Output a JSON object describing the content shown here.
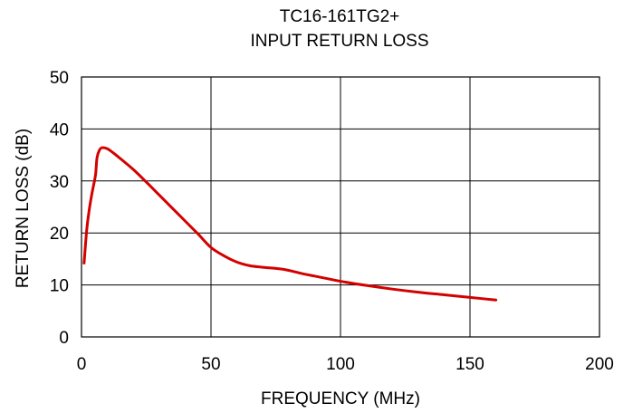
{
  "chart_data": {
    "type": "line",
    "title": "TC16-161TG2+",
    "subtitle": "INPUT RETURN LOSS",
    "xlabel": "FREQUENCY (MHz)",
    "ylabel": "RETURN LOSS (dB)",
    "xlim": [
      0,
      200
    ],
    "ylim": [
      0,
      50
    ],
    "xticks": [
      "0",
      "50",
      "100",
      "150",
      "200"
    ],
    "yticks": [
      "0",
      "10",
      "20",
      "30",
      "40",
      "50"
    ],
    "grid": true,
    "legend": "none",
    "series": [
      {
        "color": "#d40000",
        "points": [
          [
            1,
            14.2
          ],
          [
            2,
            20.5
          ],
          [
            3,
            24.5
          ],
          [
            4,
            27.5
          ],
          [
            5,
            30
          ],
          [
            5.5,
            31.5
          ],
          [
            6,
            34.5
          ],
          [
            7,
            36
          ],
          [
            8,
            36.4
          ],
          [
            10,
            36.2
          ],
          [
            12,
            35.5
          ],
          [
            15,
            34.3
          ],
          [
            20,
            32.2
          ],
          [
            25,
            29.8
          ],
          [
            30,
            27.3
          ],
          [
            35,
            24.8
          ],
          [
            40,
            22.3
          ],
          [
            45,
            19.8
          ],
          [
            50,
            17.2
          ],
          [
            55,
            15.6
          ],
          [
            60,
            14.4
          ],
          [
            65,
            13.7
          ],
          [
            70,
            13.4
          ],
          [
            78,
            13.0
          ],
          [
            85,
            12.2
          ],
          [
            90,
            11.7
          ],
          [
            95,
            11.2
          ],
          [
            100,
            10.7
          ],
          [
            110,
            9.9
          ],
          [
            120,
            9.2
          ],
          [
            130,
            8.6
          ],
          [
            140,
            8.1
          ],
          [
            150,
            7.6
          ],
          [
            160,
            7.1
          ]
        ]
      }
    ]
  }
}
